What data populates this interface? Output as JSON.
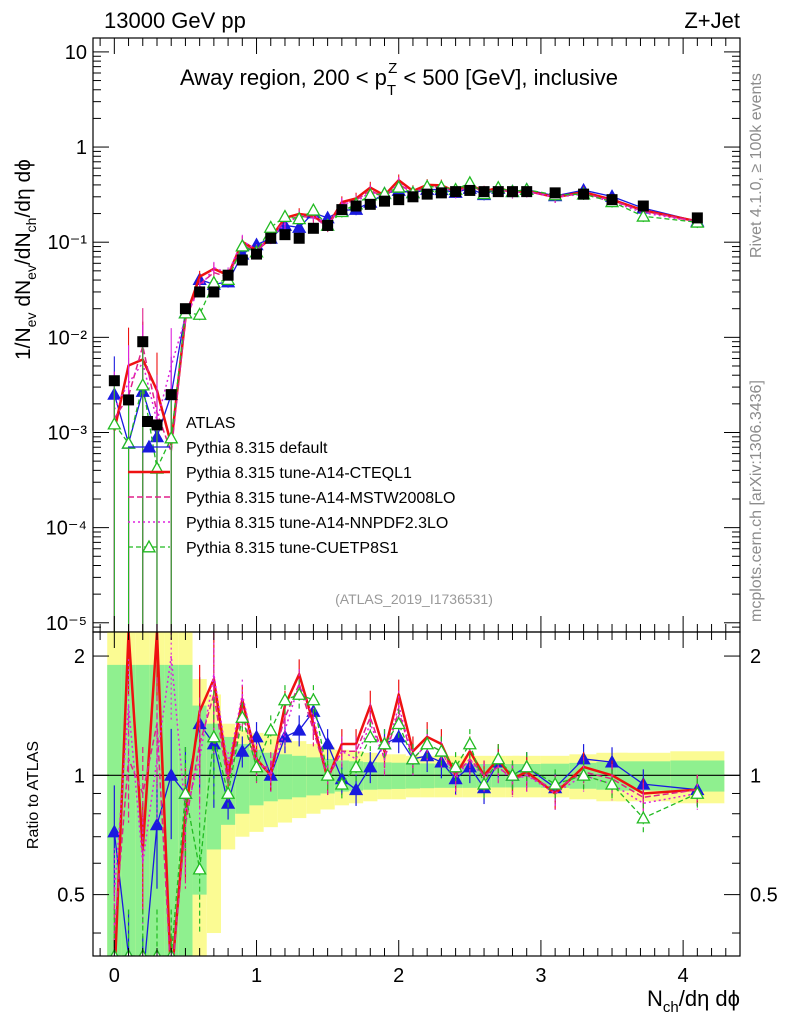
{
  "header": {
    "left": "13000 GeV pp",
    "right": "Z+Jet"
  },
  "side_labels": {
    "rivet": "Rivet 4.1.0, ≥ 100k events",
    "mcplots": "mcplots.cern.ch [arXiv:1306.3436]"
  },
  "colors": {
    "ATLAS": "#000000",
    "default": "#1a1adf",
    "a14cteq": "#ee1111",
    "mstw": "#e0208a",
    "nnpdf": "#dd22dd",
    "cuetp": "#22bb22",
    "band_inner": "#8ff08f",
    "band_outer": "#fbfb93"
  },
  "chart_data": {
    "type": "line",
    "title": "Away region, 200 < p",
    "title_sup": "Z",
    "title_sub": "T",
    "title_tail": " < 500 [GeV], inclusive",
    "watermark": "(ATLAS_2019_I1736531)",
    "xlabel": "N",
    "xlabel_sub": "ch",
    "xlabel_tail": "/dη dϕ",
    "ylabel_main": "1/N_ev dN_ev/dN_ch/dη dϕ",
    "ylabel_ratio": "Ratio to ATLAS",
    "xlim": [
      -0.15,
      4.4
    ],
    "ylim_main": [
      8e-06,
      14
    ],
    "ylim_ratio": [
      0.35,
      2.3
    ],
    "x_ticks": [
      "0",
      "1",
      "2",
      "3",
      "4"
    ],
    "main_y_ticks": [
      "10",
      "1",
      "10⁻¹",
      "10⁻²",
      "10⁻³",
      "10⁻⁴",
      "10⁻⁵"
    ],
    "ratio_y_ticks": [
      "2",
      "1",
      "0.5"
    ],
    "x": [
      0.0,
      0.1,
      0.2,
      0.3,
      0.4,
      0.5,
      0.6,
      0.7,
      0.8,
      0.9,
      1.0,
      1.1,
      1.2,
      1.3,
      1.4,
      1.5,
      1.6,
      1.7,
      1.8,
      1.9,
      2.0,
      2.1,
      2.2,
      2.3,
      2.4,
      2.5,
      2.6,
      2.7,
      2.8,
      2.9,
      3.1,
      3.3,
      3.5,
      3.72,
      4.1
    ],
    "atlas_values": [
      0.0035,
      0.0022,
      0.009,
      0.0012,
      0.0025,
      0.02,
      0.03,
      0.03,
      0.045,
      0.065,
      0.075,
      0.11,
      0.12,
      0.11,
      0.14,
      0.15,
      0.22,
      0.24,
      0.25,
      0.27,
      0.28,
      0.3,
      0.32,
      0.33,
      0.34,
      0.35,
      0.34,
      0.34,
      0.34,
      0.34,
      0.33,
      0.32,
      0.28,
      0.24,
      0.18
    ],
    "band_inner_halfwidth": [
      0.9,
      0.9,
      0.9,
      0.9,
      0.9,
      0.9,
      0.5,
      0.35,
      0.25,
      0.2,
      0.16,
      0.14,
      0.13,
      0.12,
      0.11,
      0.1,
      0.09,
      0.085,
      0.08,
      0.078,
      0.076,
      0.074,
      0.072,
      0.07,
      0.07,
      0.07,
      0.068,
      0.068,
      0.068,
      0.068,
      0.07,
      0.075,
      0.08,
      0.085,
      0.09
    ],
    "band_outer_halfwidth": [
      1.3,
      1.3,
      1.3,
      1.3,
      1.3,
      1.3,
      0.75,
      0.6,
      0.35,
      0.3,
      0.28,
      0.26,
      0.24,
      0.22,
      0.2,
      0.18,
      0.16,
      0.15,
      0.14,
      0.13,
      0.13,
      0.12,
      0.12,
      0.12,
      0.12,
      0.12,
      0.12,
      0.12,
      0.12,
      0.12,
      0.12,
      0.13,
      0.14,
      0.14,
      0.15
    ],
    "series": [
      {
        "key": "default",
        "name": "Pythia 8.315 default",
        "dash": "",
        "width": 1.3,
        "marker": "triangle-filled",
        "ratio": [
          0.72,
          0.35,
          0.3,
          0.75,
          1.0,
          0.9,
          1.35,
          1.2,
          0.85,
          1.15,
          1.25,
          1.0,
          1.25,
          1.3,
          1.45,
          1.2,
          0.98,
          0.92,
          1.05,
          1.2,
          1.25,
          1.1,
          1.12,
          1.08,
          0.98,
          1.05,
          0.93,
          1.08,
          1.0,
          1.05,
          0.93,
          1.1,
          1.08,
          0.95,
          0.92
        ]
      },
      {
        "key": "a14cteq",
        "name": "Pythia 8.315 tune-A14-CTEQL1",
        "dash": "",
        "width": 2.5,
        "marker": "none",
        "ratio": [
          0.3,
          2.3,
          0.65,
          2.3,
          0.3,
          0.8,
          1.45,
          1.75,
          1.0,
          1.55,
          1.1,
          1.0,
          1.5,
          1.8,
          1.35,
          0.98,
          1.2,
          1.2,
          1.5,
          1.15,
          1.6,
          1.15,
          1.25,
          1.2,
          1.0,
          1.15,
          1.0,
          1.1,
          0.98,
          1.02,
          0.9,
          1.05,
          1.0,
          0.9,
          0.92
        ]
      },
      {
        "key": "mstw",
        "name": "Pythia 8.315 tune-A14-MSTW2008LO",
        "dash": "6,3",
        "width": 1.5,
        "marker": "none",
        "ratio": [
          0.4,
          1.1,
          0.9,
          1.35,
          0.25,
          0.75,
          1.2,
          1.6,
          0.95,
          1.45,
          1.05,
          1.05,
          1.4,
          1.7,
          1.3,
          0.98,
          1.15,
          1.15,
          1.4,
          1.1,
          1.45,
          1.1,
          1.2,
          1.15,
          1.0,
          1.1,
          1.0,
          1.05,
          0.98,
          1.0,
          0.92,
          1.02,
          0.98,
          0.88,
          0.92
        ]
      },
      {
        "key": "nnpdf",
        "name": "Pythia 8.315 tune-A14-NNPDF2.3LO",
        "dash": "2,3",
        "width": 1.5,
        "marker": "none",
        "ratio": [
          0.5,
          1.5,
          0.6,
          1.1,
          2.0,
          0.8,
          1.1,
          1.8,
          1.05,
          1.6,
          1.1,
          1.0,
          1.3,
          1.7,
          1.4,
          1.0,
          1.15,
          1.1,
          1.35,
          1.1,
          1.5,
          1.1,
          1.2,
          1.15,
          0.98,
          1.1,
          0.98,
          1.05,
          0.97,
          1.0,
          0.9,
          1.0,
          0.95,
          0.85,
          0.9
        ]
      },
      {
        "key": "cuetp",
        "name": "Pythia 8.315 tune-CUETP8S1",
        "dash": "5,3",
        "width": 1.3,
        "marker": "triangle-open",
        "ratio": [
          0.35,
          0.35,
          0.35,
          0.35,
          0.35,
          0.9,
          0.58,
          1.25,
          0.9,
          1.4,
          1.05,
          1.3,
          1.55,
          1.6,
          1.55,
          1.0,
          0.95,
          1.05,
          1.25,
          1.2,
          1.35,
          1.1,
          1.2,
          1.15,
          1.05,
          1.2,
          0.95,
          1.1,
          1.0,
          1.05,
          0.95,
          1.0,
          0.95,
          0.78,
          0.9
        ]
      }
    ],
    "legend": {
      "atlas": "ATLAS",
      "placement": "center-left"
    }
  }
}
